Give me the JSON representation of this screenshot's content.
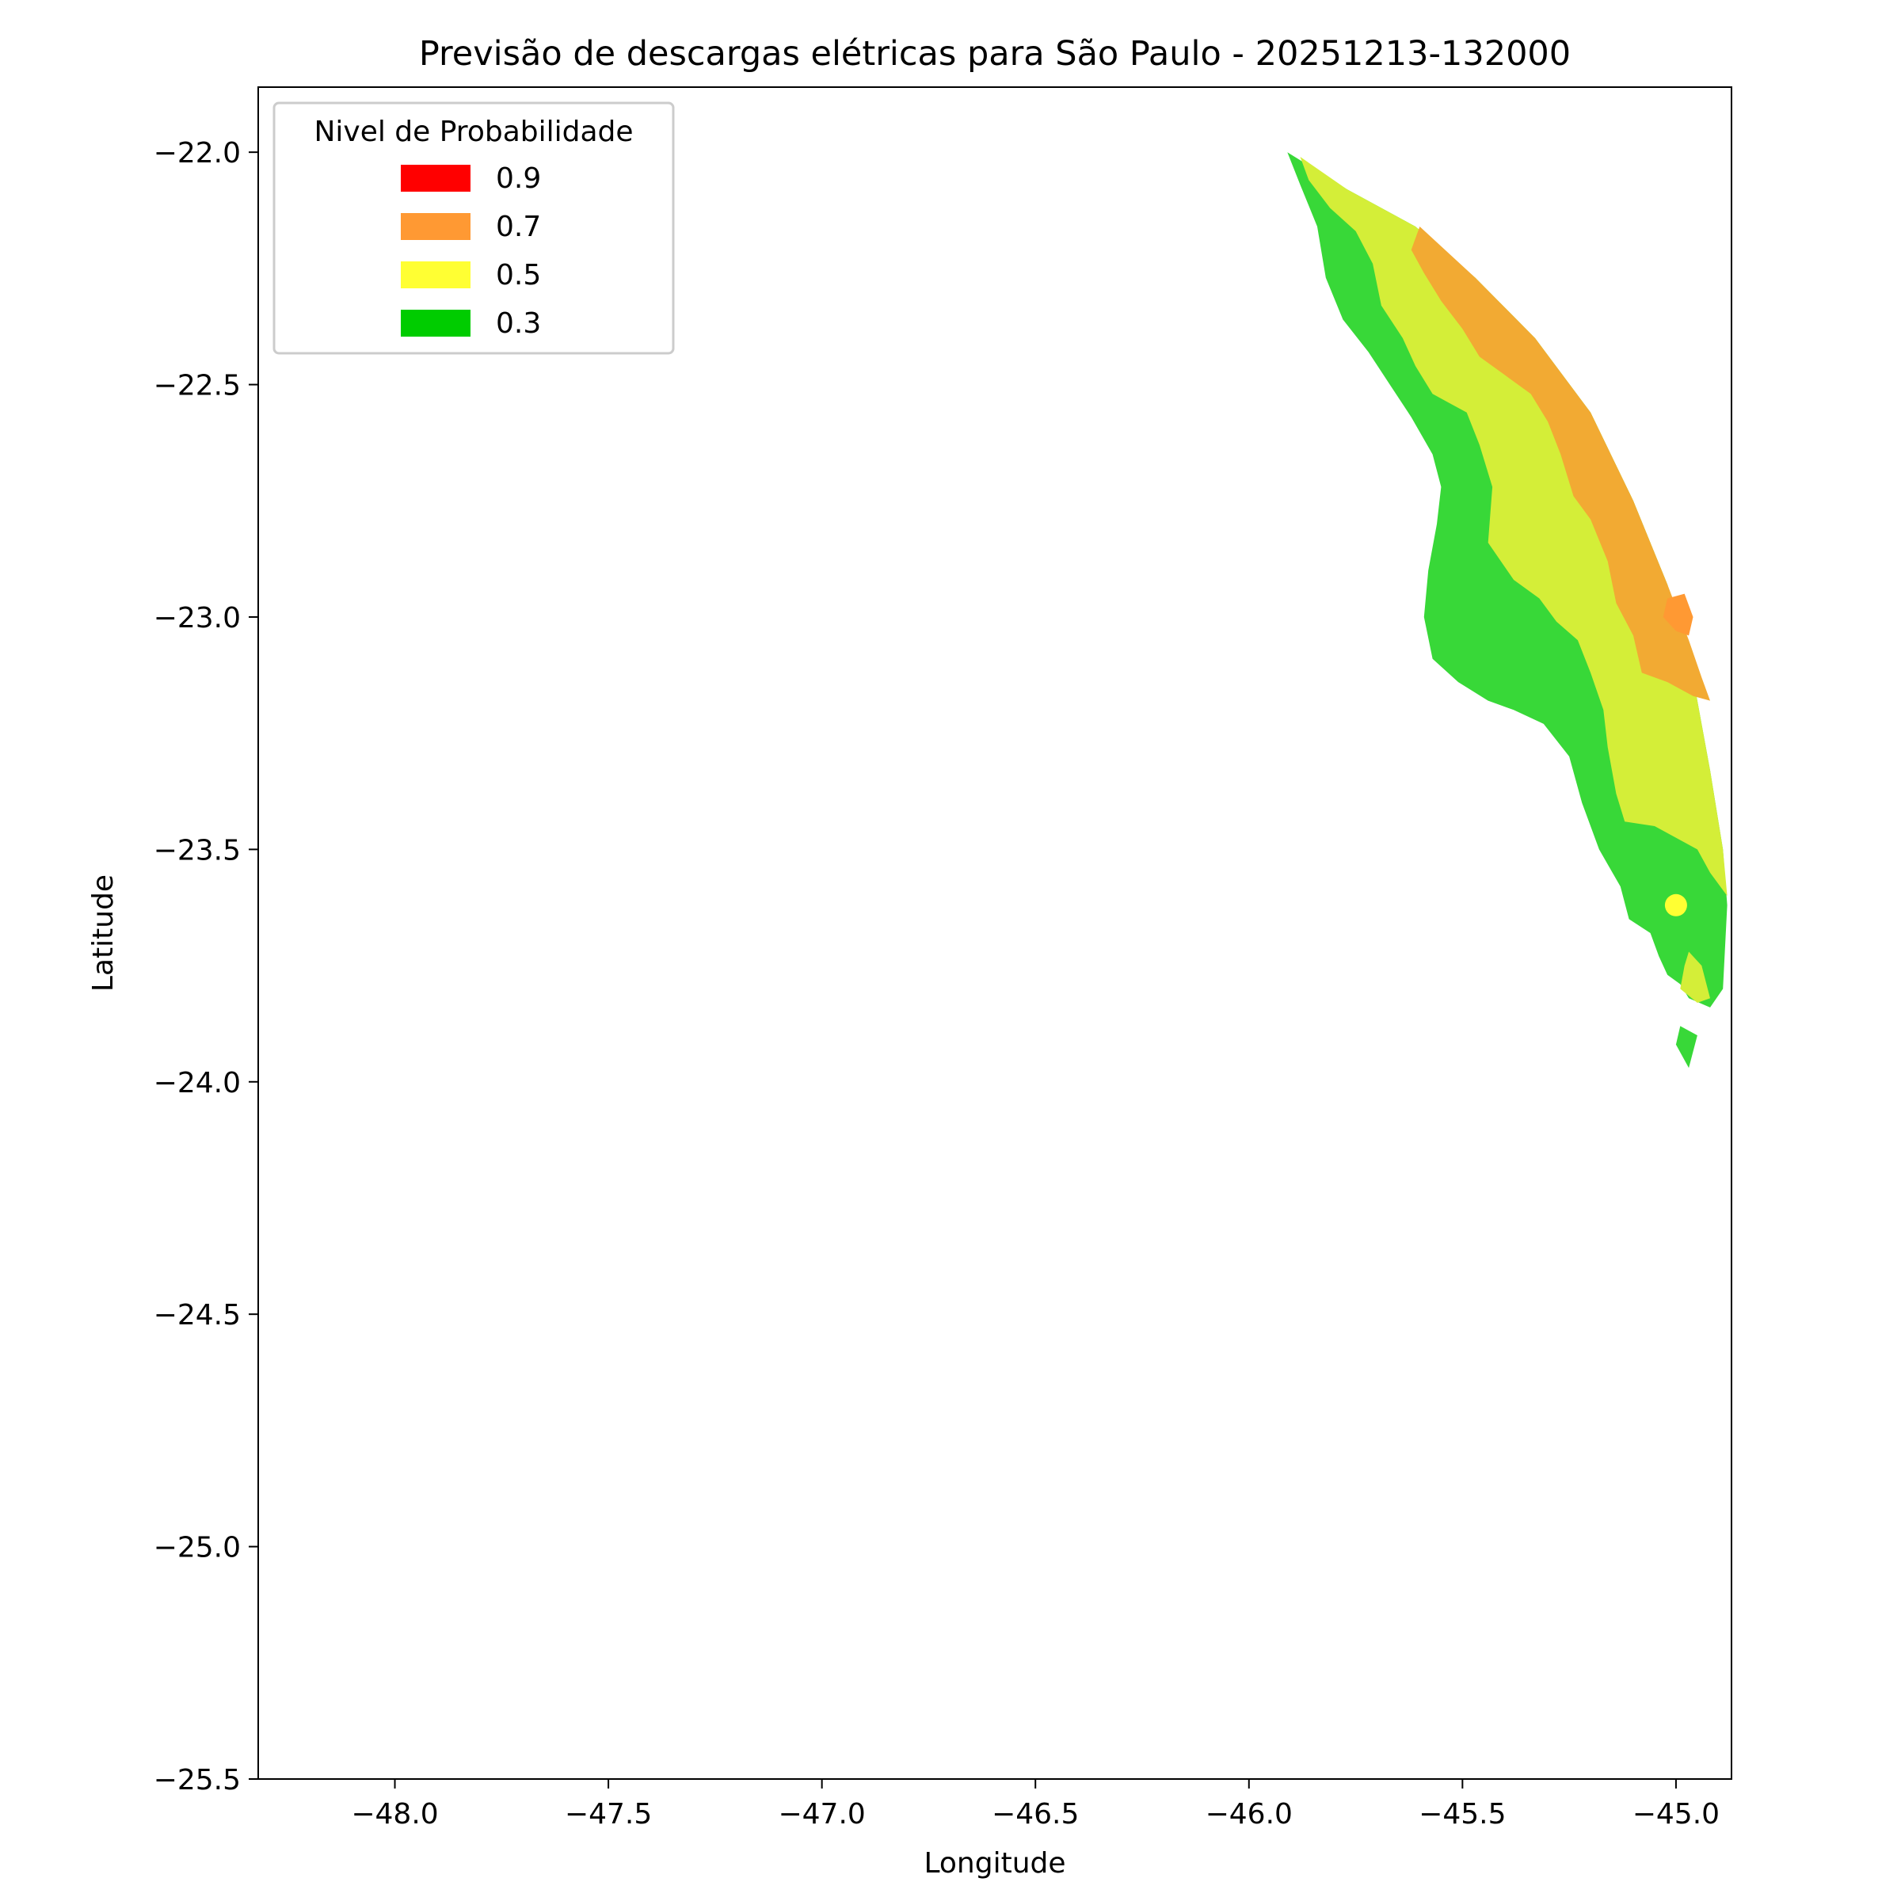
{
  "chart_data": {
    "type": "contour",
    "title": "Previsão de descargas elétricas para São Paulo - 20251213-132000",
    "xlabel": "Longitude",
    "ylabel": "Latitude",
    "xlim": [
      -48.32,
      -44.87
    ],
    "ylim": [
      -25.5,
      -21.86
    ],
    "xticks": [
      -48.0,
      -47.5,
      -47.0,
      -46.5,
      -46.0,
      -45.5,
      -45.0
    ],
    "xtick_labels": [
      "−48.0",
      "−47.5",
      "−47.0",
      "−46.5",
      "−46.0",
      "−45.5",
      "−45.0"
    ],
    "yticks": [
      -22.0,
      -22.5,
      -23.0,
      -23.5,
      -24.0,
      -24.5,
      -25.0,
      -25.5
    ],
    "ytick_labels": [
      "−22.0",
      "−22.5",
      "−23.0",
      "−23.5",
      "−24.0",
      "−24.5",
      "−25.0",
      "−25.5"
    ],
    "grid": false,
    "legend": {
      "title": "Nivel de Probabilidade",
      "placement": "upper-left",
      "entries": [
        {
          "label": "0.9",
          "color": "#ff0000"
        },
        {
          "label": "0.7",
          "color": "#ff9933"
        },
        {
          "label": "0.5",
          "color": "#ffff33"
        },
        {
          "label": "0.3",
          "color": "#00cc00"
        }
      ]
    },
    "regions": [
      {
        "level": "0.3",
        "color": "#38d838",
        "polygon": [
          [
            -45.91,
            -22.0
          ],
          [
            -45.77,
            -22.08
          ],
          [
            -45.61,
            -22.16
          ],
          [
            -45.47,
            -22.27
          ],
          [
            -45.33,
            -22.4
          ],
          [
            -45.2,
            -22.56
          ],
          [
            -45.1,
            -22.75
          ],
          [
            -45.02,
            -22.93
          ],
          [
            -44.96,
            -23.13
          ],
          [
            -44.92,
            -23.33
          ],
          [
            -44.89,
            -23.5
          ],
          [
            -44.88,
            -23.62
          ],
          [
            -44.89,
            -23.8
          ],
          [
            -44.92,
            -23.84
          ],
          [
            -44.97,
            -23.82
          ],
          [
            -44.99,
            -23.79
          ],
          [
            -45.02,
            -23.77
          ],
          [
            -45.04,
            -23.73
          ],
          [
            -45.06,
            -23.68
          ],
          [
            -45.11,
            -23.65
          ],
          [
            -45.13,
            -23.58
          ],
          [
            -45.18,
            -23.5
          ],
          [
            -45.22,
            -23.4
          ],
          [
            -45.25,
            -23.3
          ],
          [
            -45.31,
            -23.23
          ],
          [
            -45.38,
            -23.2
          ],
          [
            -45.44,
            -23.18
          ],
          [
            -45.51,
            -23.14
          ],
          [
            -45.57,
            -23.09
          ],
          [
            -45.59,
            -23.0
          ],
          [
            -45.58,
            -22.9
          ],
          [
            -45.56,
            -22.8
          ],
          [
            -45.55,
            -22.72
          ],
          [
            -45.57,
            -22.65
          ],
          [
            -45.62,
            -22.57
          ],
          [
            -45.67,
            -22.5
          ],
          [
            -45.72,
            -22.43
          ],
          [
            -45.78,
            -22.36
          ],
          [
            -45.82,
            -22.27
          ],
          [
            -45.84,
            -22.16
          ],
          [
            -45.88,
            -22.07
          ]
        ]
      },
      {
        "level": "0.3",
        "color": "#38d838",
        "polygon": [
          [
            -44.99,
            -23.88
          ],
          [
            -44.95,
            -23.9
          ],
          [
            -44.97,
            -23.97
          ],
          [
            -45.0,
            -23.92
          ]
        ]
      },
      {
        "level": "0.5",
        "color": "#d4ee38",
        "polygon": [
          [
            -45.88,
            -22.01
          ],
          [
            -45.77,
            -22.08
          ],
          [
            -45.61,
            -22.16
          ],
          [
            -45.47,
            -22.27
          ],
          [
            -45.33,
            -22.4
          ],
          [
            -45.2,
            -22.56
          ],
          [
            -45.1,
            -22.75
          ],
          [
            -45.02,
            -22.93
          ],
          [
            -44.96,
            -23.13
          ],
          [
            -44.92,
            -23.33
          ],
          [
            -44.89,
            -23.5
          ],
          [
            -44.88,
            -23.6
          ],
          [
            -44.92,
            -23.55
          ],
          [
            -44.95,
            -23.5
          ],
          [
            -45.05,
            -23.45
          ],
          [
            -45.12,
            -23.44
          ],
          [
            -45.14,
            -23.38
          ],
          [
            -45.16,
            -23.28
          ],
          [
            -45.17,
            -23.2
          ],
          [
            -45.2,
            -23.12
          ],
          [
            -45.23,
            -23.05
          ],
          [
            -45.28,
            -23.01
          ],
          [
            -45.32,
            -22.96
          ],
          [
            -45.38,
            -22.92
          ],
          [
            -45.44,
            -22.84
          ],
          [
            -45.43,
            -22.72
          ],
          [
            -45.46,
            -22.63
          ],
          [
            -45.49,
            -22.56
          ],
          [
            -45.57,
            -22.52
          ],
          [
            -45.61,
            -22.46
          ],
          [
            -45.64,
            -22.4
          ],
          [
            -45.69,
            -22.33
          ],
          [
            -45.71,
            -22.24
          ],
          [
            -45.75,
            -22.17
          ],
          [
            -45.81,
            -22.12
          ],
          [
            -45.86,
            -22.06
          ]
        ]
      },
      {
        "level": "0.5",
        "color": "#d4ee38",
        "polygon": [
          [
            -44.97,
            -23.72
          ],
          [
            -44.94,
            -23.75
          ],
          [
            -44.92,
            -23.82
          ],
          [
            -44.95,
            -23.83
          ],
          [
            -44.99,
            -23.8
          ],
          [
            -44.98,
            -23.75
          ]
        ]
      },
      {
        "level": "0.7",
        "color": "#f2aa33",
        "polygon": [
          [
            -45.6,
            -22.16
          ],
          [
            -45.47,
            -22.27
          ],
          [
            -45.33,
            -22.4
          ],
          [
            -45.2,
            -22.56
          ],
          [
            -45.1,
            -22.75
          ],
          [
            -45.02,
            -22.93
          ],
          [
            -44.97,
            -23.05
          ],
          [
            -44.94,
            -23.13
          ],
          [
            -44.92,
            -23.18
          ],
          [
            -44.96,
            -23.17
          ],
          [
            -45.02,
            -23.14
          ],
          [
            -45.08,
            -23.12
          ],
          [
            -45.1,
            -23.04
          ],
          [
            -45.14,
            -22.97
          ],
          [
            -45.16,
            -22.88
          ],
          [
            -45.2,
            -22.79
          ],
          [
            -45.24,
            -22.74
          ],
          [
            -45.27,
            -22.65
          ],
          [
            -45.3,
            -22.58
          ],
          [
            -45.34,
            -22.52
          ],
          [
            -45.4,
            -22.48
          ],
          [
            -45.46,
            -22.44
          ],
          [
            -45.5,
            -22.38
          ],
          [
            -45.55,
            -22.32
          ],
          [
            -45.59,
            -22.26
          ],
          [
            -45.62,
            -22.21
          ]
        ]
      },
      {
        "level": "0.7",
        "color": "#ff9933",
        "polygon": [
          [
            -45.02,
            -22.96
          ],
          [
            -44.98,
            -22.95
          ],
          [
            -44.96,
            -23.0
          ],
          [
            -44.97,
            -23.04
          ],
          [
            -45.0,
            -23.03
          ],
          [
            -45.03,
            -23.0
          ]
        ]
      }
    ],
    "markers": [
      {
        "x": -45.0,
        "y": -23.62,
        "level": "0.5",
        "color": "#ffff33"
      }
    ]
  }
}
